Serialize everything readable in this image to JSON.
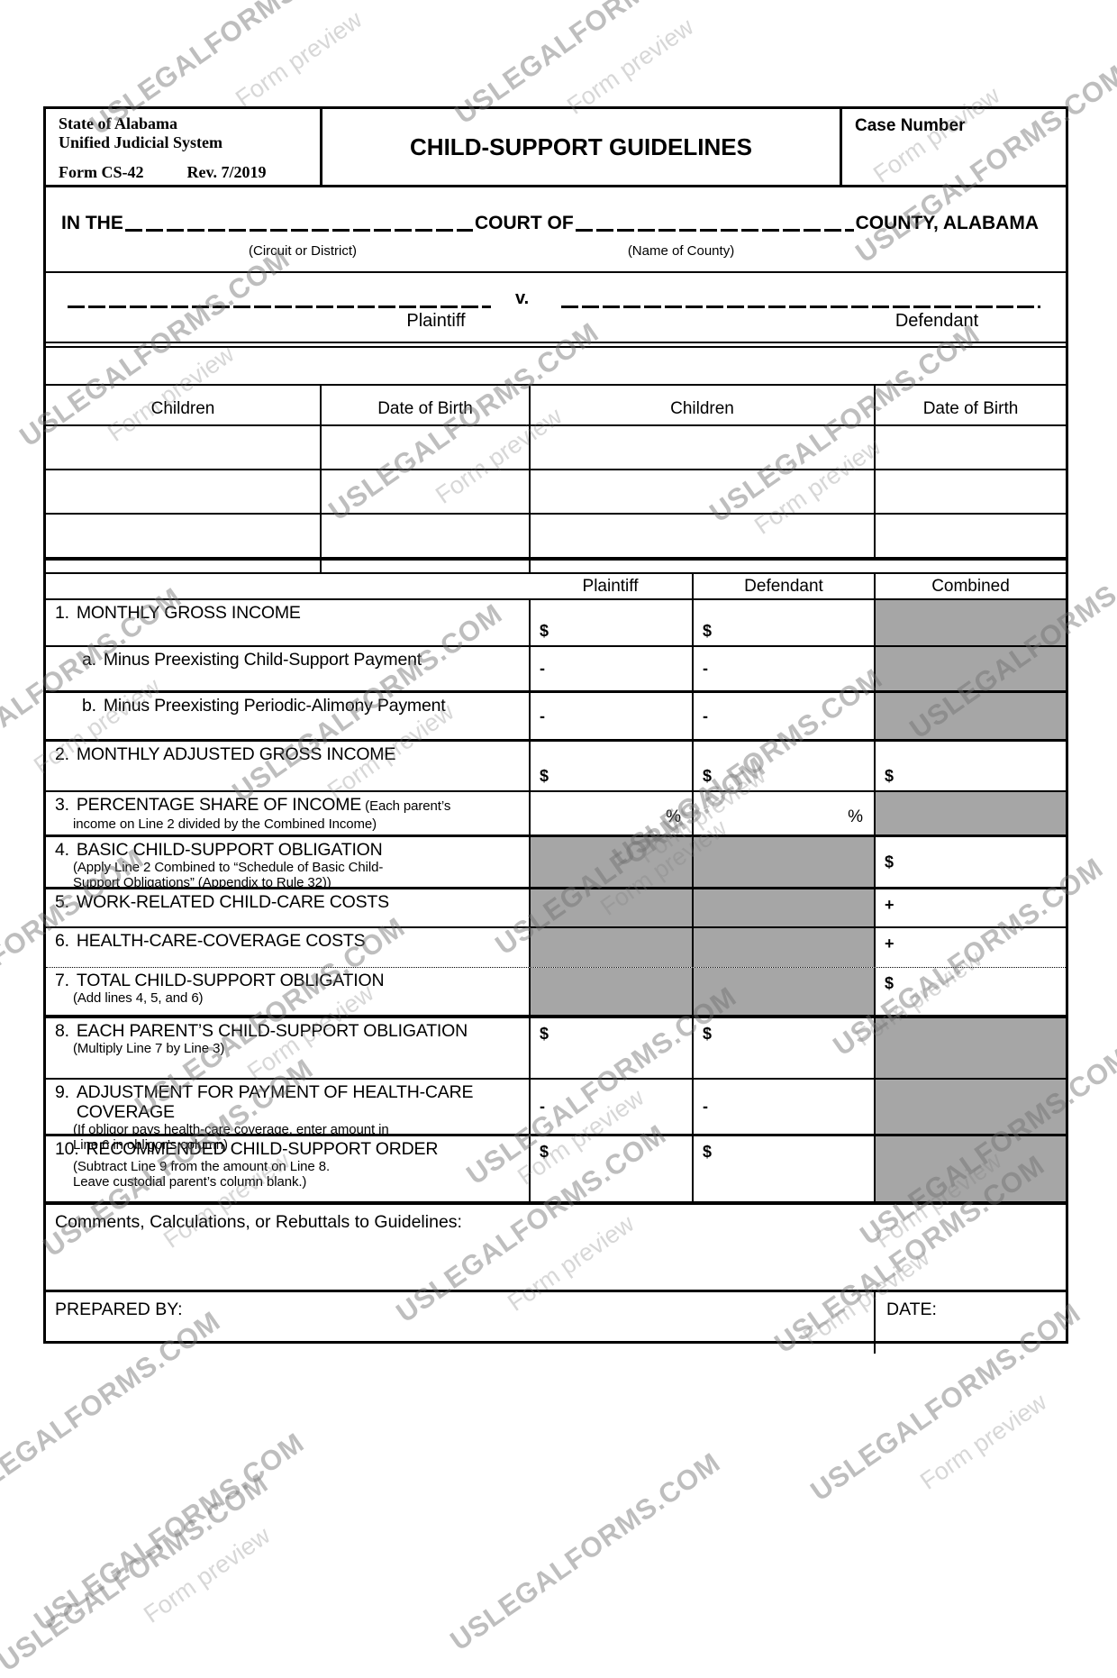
{
  "watermark": {
    "brand": "USLEGALFORMS.COM",
    "preview": "Form preview"
  },
  "header": {
    "agency_line1": "State of Alabama",
    "agency_line2": "Unified Judicial System",
    "form_number": "Form CS-42",
    "revision": "Rev. 7/2019",
    "title": "CHILD-SUPPORT GUIDELINES",
    "case_number_label": "Case Number"
  },
  "court_line": {
    "prefix": "IN THE",
    "middle": "COURT OF",
    "suffix": "COUNTY,  ALABAMA",
    "caption_court": "(Circuit or District)",
    "caption_county": "(Name of County)"
  },
  "parties": {
    "versus": "v.",
    "plaintiff_label": "Plaintiff",
    "defendant_label": "Defendant"
  },
  "children_table": {
    "headers": [
      "Children",
      "Date of Birth",
      "Children",
      "Date of Birth"
    ],
    "empty_rows": 3
  },
  "obligation_table": {
    "column_headers": [
      "Plaintiff",
      "Defendant",
      "Combined"
    ],
    "rows": [
      {
        "id": "1",
        "num": "1.",
        "label": "MONTHLY GROSS INCOME",
        "plaintiff": "$",
        "defendant": "$",
        "combined": "",
        "shaded": [
          "combined"
        ]
      },
      {
        "id": "1a",
        "num": "a.",
        "label": "Minus Preexisting Child-Support Payment",
        "plaintiff": "-",
        "defendant": "-",
        "combined": "",
        "shaded": [
          "combined"
        ]
      },
      {
        "id": "1b",
        "num": "b.",
        "label": "Minus Preexisting Periodic-Alimony Payment",
        "plaintiff": "-",
        "defendant": "-",
        "combined": "",
        "shaded": [
          "combined"
        ]
      },
      {
        "id": "2",
        "num": "2.",
        "label": "MONTHLY ADJUSTED GROSS INCOME",
        "plaintiff": "$",
        "defendant": "$",
        "combined": "$",
        "shaded": []
      },
      {
        "id": "3",
        "num": "3.",
        "label": "PERCENTAGE SHARE OF INCOME",
        "label_small_inline": "(Each parent’s",
        "sublines": [
          "income on Line 2 divided by the Combined Income)"
        ],
        "plaintiff": "%",
        "defendant": "%",
        "combined": "",
        "shaded": [
          "combined"
        ]
      },
      {
        "id": "4",
        "num": "4.",
        "label": "BASIC CHILD-SUPPORT OBLIGATION",
        "sublines": [
          "(Apply Line 2 Combined to “Schedule of Basic Child-",
          "Support Obligations”  (Appendix to Rule 32))"
        ],
        "plaintiff": "",
        "defendant": "",
        "combined": "$",
        "shaded": [
          "plaintiff",
          "defendant"
        ]
      },
      {
        "id": "5",
        "num": "5.",
        "label": "WORK-RELATED CHILD-CARE COSTS",
        "plaintiff": "",
        "defendant": "",
        "combined": "+",
        "shaded": [
          "plaintiff",
          "defendant"
        ]
      },
      {
        "id": "6",
        "num": "6.",
        "label": "HEALTH-CARE-COVERAGE COSTS",
        "plaintiff": "",
        "defendant": "",
        "combined": "+",
        "shaded": [
          "plaintiff",
          "defendant"
        ]
      },
      {
        "id": "7",
        "num": "7.",
        "label": "TOTAL CHILD-SUPPORT OBLIGATION",
        "sublines": [
          "(Add lines 4, 5, and 6)"
        ],
        "plaintiff": "",
        "defendant": "",
        "combined": "$",
        "shaded": [
          "plaintiff",
          "defendant"
        ]
      },
      {
        "id": "8",
        "num": "8.",
        "label": "EACH PARENT’S CHILD-SUPPORT OBLIGATION",
        "sublines": [
          "(Multiply Line 7 by Line 3)"
        ],
        "plaintiff": "$",
        "defendant": "$",
        "combined": "",
        "shaded": [
          "combined"
        ]
      },
      {
        "id": "9",
        "num": "9.",
        "label": "ADJUSTMENT FOR PAYMENT OF HEALTH-CARE COVERAGE",
        "sublines": [
          "(If obligor pays health-care coverage, enter amount in",
          "Line 6 in obligor’s column)"
        ],
        "plaintiff": "-",
        "defendant": "-",
        "combined": "",
        "shaded": [
          "combined"
        ]
      },
      {
        "id": "10",
        "num": "10.",
        "label": "RECOMMENDED CHILD-SUPPORT ORDER",
        "sublines": [
          "(Subtract Line 9 from the amount on Line 8.",
          "Leave custodial parent’s column blank.)"
        ],
        "plaintiff": "$",
        "defendant": "$",
        "combined": "",
        "shaded": [
          "combined"
        ]
      }
    ]
  },
  "comments_label": "Comments, Calculations, or Rebuttals to Guidelines:",
  "footer": {
    "prepared_by_label": "PREPARED BY:",
    "date_label": "DATE:"
  },
  "colors": {
    "shaded_cell": "#a6a6a6",
    "watermark_brand": "#b5b5b5",
    "watermark_preview": "#d2d2d2"
  }
}
